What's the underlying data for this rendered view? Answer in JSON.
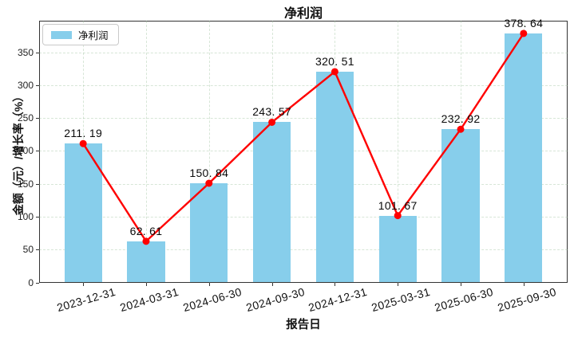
{
  "chart_data": {
    "type": "bar+line",
    "title": "净利润",
    "xlabel": "报告日",
    "ylabel": "金额（元）/增长率（%）",
    "categories": [
      "2023-12-31",
      "2024-03-31",
      "2024-06-30",
      "2024-09-30",
      "2024-12-31",
      "2025-03-31",
      "2025-06-30",
      "2025-09-30"
    ],
    "series": [
      {
        "name": "净利润",
        "type": "bar",
        "color": "#87CEEB",
        "values": [
          211.19,
          62.61,
          150.84,
          243.57,
          320.51,
          101.67,
          232.92,
          378.64
        ]
      },
      {
        "name": "净利润",
        "type": "line",
        "color": "#ff0000",
        "marker": "circle",
        "values": [
          211.19,
          62.61,
          150.84,
          243.57,
          320.51,
          101.67,
          232.92,
          378.64
        ]
      }
    ],
    "point_labels": [
      "211. 19",
      "62. 61",
      "150. 84",
      "243. 57",
      "320. 51",
      "101. 67",
      "232. 92",
      "378. 64"
    ],
    "ylim": [
      0,
      398
    ],
    "yticks": [
      0,
      50,
      100,
      150,
      200,
      250,
      300,
      350
    ],
    "grid": true,
    "grid_style": "dashed",
    "legend_position": "upper left",
    "x_tick_rotation_deg": 16,
    "colors": {
      "bar": "#87CEEB",
      "line": "#ff0000",
      "grid": "#aecfae",
      "frame": "#333333"
    }
  },
  "legend": {
    "items": [
      {
        "label": "净利润",
        "swatch_color": "#87CEEB"
      }
    ]
  }
}
